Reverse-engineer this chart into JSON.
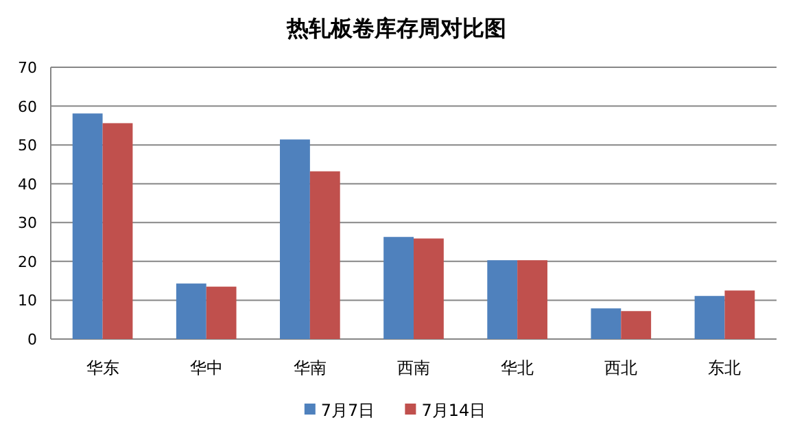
{
  "chart_data": {
    "type": "bar",
    "title": "热轧板卷库存周对比图",
    "categories": [
      "华东",
      "华中",
      "华南",
      "西南",
      "华北",
      "西北",
      "东北"
    ],
    "series": [
      {
        "name": "7月7日",
        "color": "#4f81bd",
        "values": [
          58.1,
          14.3,
          51.4,
          26.3,
          20.3,
          7.9,
          11.1
        ]
      },
      {
        "name": "7月14日",
        "color": "#c0504d",
        "values": [
          55.6,
          13.5,
          43.2,
          25.9,
          20.3,
          7.2,
          12.5
        ]
      }
    ],
    "ylim": [
      0,
      70
    ],
    "yticks": [
      0,
      10,
      20,
      30,
      40,
      50,
      60,
      70
    ],
    "grid": "y",
    "legend": "bottom"
  }
}
